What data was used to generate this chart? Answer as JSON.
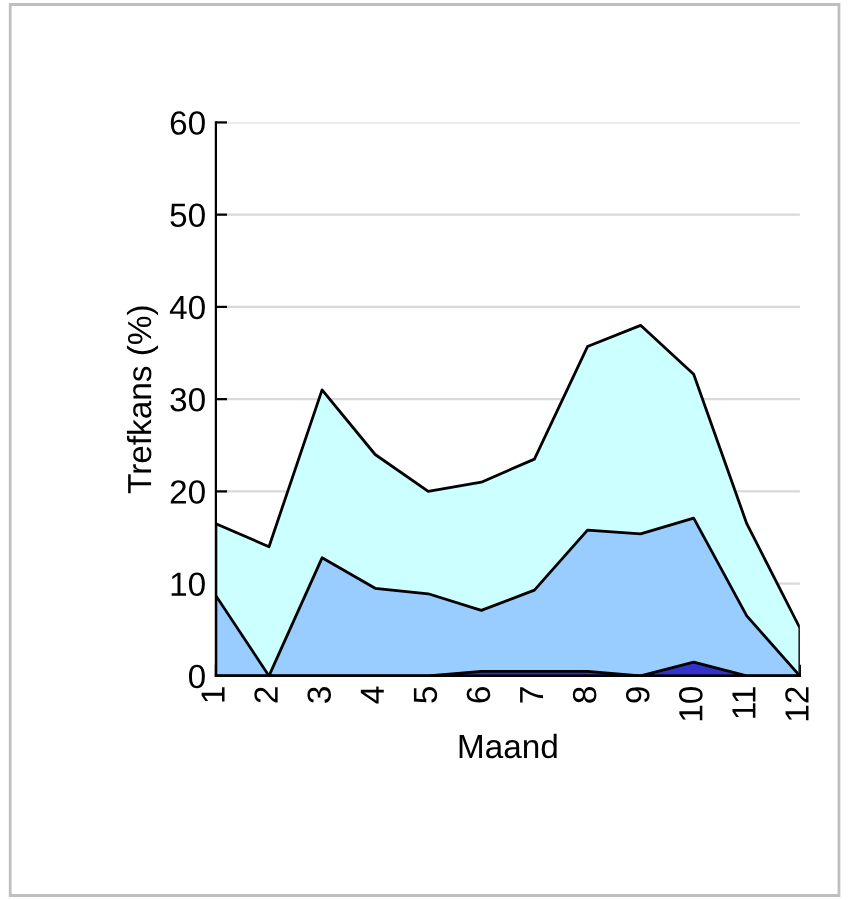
{
  "chart_data": {
    "type": "area",
    "xlabel": "Maand",
    "ylabel": "Trefkans (%)",
    "categories": [
      "1",
      "2",
      "3",
      "4",
      "5",
      "6",
      "7",
      "8",
      "9",
      "10",
      "11",
      "12"
    ],
    "series": [
      {
        "color": "#ccffff",
        "values": [
          16.5,
          14,
          31,
          24,
          20,
          21,
          23.5,
          35.7,
          38,
          32.7,
          16.5,
          5.2
        ]
      },
      {
        "color": "#99ccff",
        "values": [
          8.7,
          0,
          12.8,
          9.5,
          8.9,
          7.1,
          9.3,
          15.8,
          15.4,
          17.1,
          6.5,
          0
        ]
      },
      {
        "color": "#3333cc",
        "values": [
          0,
          0,
          0,
          0,
          0,
          0.5,
          0.5,
          0.5,
          0,
          1.5,
          0,
          0
        ]
      }
    ],
    "ylim": [
      0,
      60
    ],
    "yticks": [
      0,
      10,
      20,
      30,
      40,
      50,
      60
    ],
    "grid": "y"
  }
}
